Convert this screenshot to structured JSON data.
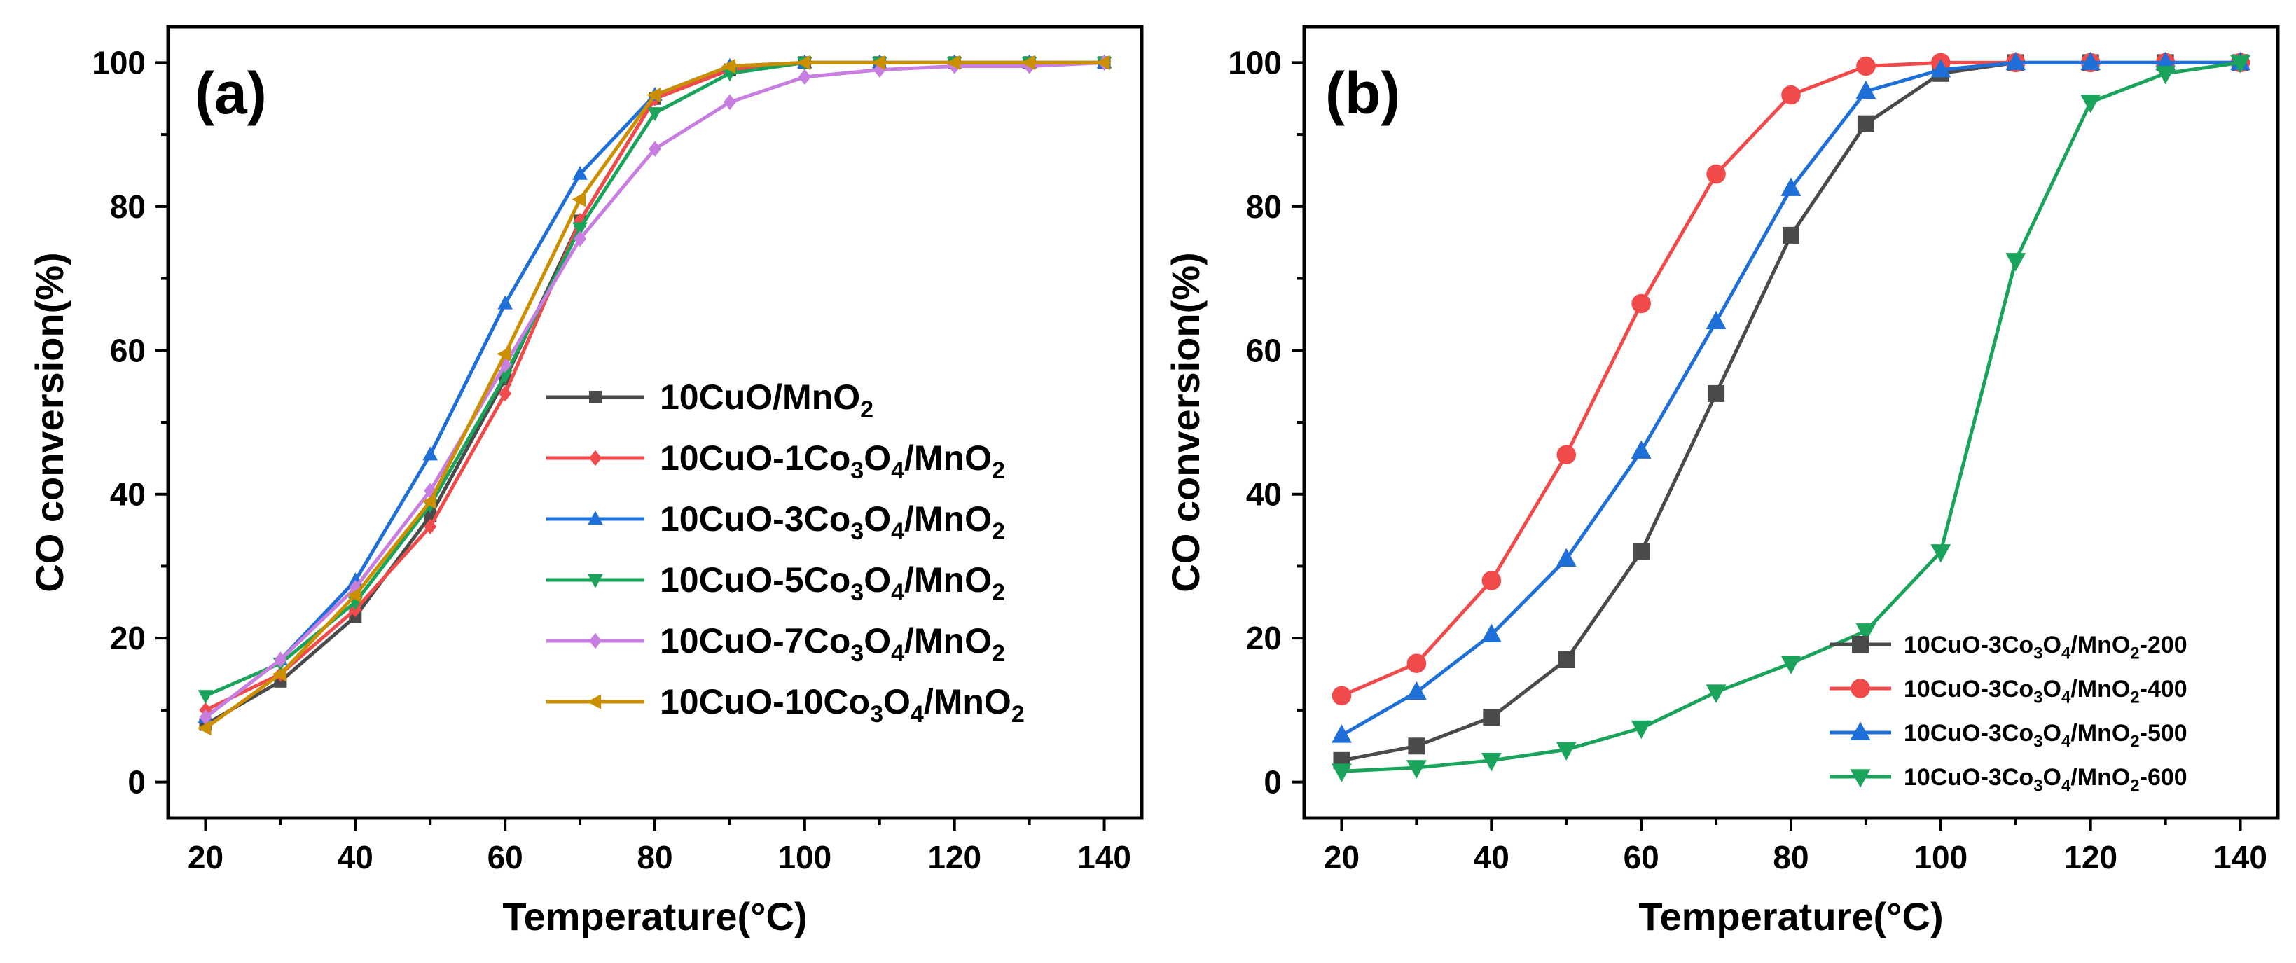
{
  "chart_data": [
    {
      "type": "line",
      "panel_label": "(a)",
      "xlabel": "Temperature(°C)",
      "ylabel": "CO conversion(%)",
      "xlim": [
        15,
        145
      ],
      "ylim": [
        -5,
        105
      ],
      "xticks": [
        20,
        40,
        60,
        80,
        100,
        120,
        140
      ],
      "yticks": [
        0,
        20,
        40,
        60,
        80,
        100
      ],
      "legend_position": "center-right",
      "x": [
        20,
        30,
        40,
        50,
        60,
        70,
        80,
        90,
        100,
        110,
        120,
        130,
        140
      ],
      "series": [
        {
          "name": "10CuO/MnO2",
          "label_parts": [
            [
              "10CuO/MnO",
              false
            ],
            [
              "2",
              true
            ]
          ],
          "color": "#4a4a4a",
          "marker": "square",
          "values": [
            8.0,
            14.0,
            23.0,
            37.0,
            56.0,
            78.0,
            95.0,
            99.0,
            100.0,
            100.0,
            100.0,
            100.0,
            100.0
          ]
        },
        {
          "name": "10CuO-1Co3O4/MnO2",
          "label_parts": [
            [
              "10CuO-1Co",
              false
            ],
            [
              "3",
              true
            ],
            [
              "O",
              false
            ],
            [
              "4",
              true
            ],
            [
              "/MnO",
              false
            ],
            [
              "2",
              true
            ]
          ],
          "color": "#f04a4a",
          "marker": "diamond",
          "values": [
            10.0,
            15.0,
            24.0,
            35.5,
            54.0,
            78.0,
            95.0,
            99.0,
            100.0,
            100.0,
            100.0,
            100.0,
            100.0
          ]
        },
        {
          "name": "10CuO-3Co3O4/MnO2",
          "label_parts": [
            [
              "10CuO-3Co",
              false
            ],
            [
              "3",
              true
            ],
            [
              "O",
              false
            ],
            [
              "4",
              true
            ],
            [
              "/MnO",
              false
            ],
            [
              "2",
              true
            ]
          ],
          "color": "#1f6fd9",
          "marker": "triangle-up",
          "values": [
            9.0,
            17.0,
            28.0,
            45.5,
            66.5,
            84.5,
            95.5,
            99.5,
            100.0,
            100.0,
            100.0,
            100.0,
            100.0
          ]
        },
        {
          "name": "10CuO-5Co3O4/MnO2",
          "label_parts": [
            [
              "10CuO-5Co",
              false
            ],
            [
              "3",
              true
            ],
            [
              "O",
              false
            ],
            [
              "4",
              true
            ],
            [
              "/MnO",
              false
            ],
            [
              "2",
              true
            ]
          ],
          "color": "#1aa35a",
          "marker": "triangle-down",
          "values": [
            12.0,
            16.5,
            25.0,
            38.5,
            56.5,
            77.0,
            93.0,
            98.5,
            100.0,
            100.0,
            100.0,
            100.0,
            100.0
          ]
        },
        {
          "name": "10CuO-7Co3O4/MnO2",
          "label_parts": [
            [
              "10CuO-7Co",
              false
            ],
            [
              "3",
              true
            ],
            [
              "O",
              false
            ],
            [
              "4",
              true
            ],
            [
              "/MnO",
              false
            ],
            [
              "2",
              true
            ]
          ],
          "color": "#c77ee0",
          "marker": "diamond",
          "values": [
            9.0,
            17.0,
            27.0,
            40.5,
            58.0,
            75.5,
            88.0,
            94.5,
            98.0,
            99.0,
            99.5,
            99.5,
            100.0
          ]
        },
        {
          "name": "10CuO-10Co3O4/MnO2",
          "label_parts": [
            [
              "10CuO-10Co",
              false
            ],
            [
              "3",
              true
            ],
            [
              "O",
              false
            ],
            [
              "4",
              true
            ],
            [
              "/MnO",
              false
            ],
            [
              "2",
              true
            ]
          ],
          "color": "#cc8f00",
          "marker": "left-triangle",
          "values": [
            7.5,
            15.0,
            26.0,
            39.0,
            59.5,
            81.0,
            95.5,
            99.5,
            100.0,
            100.0,
            100.0,
            100.0,
            100.0
          ]
        }
      ]
    },
    {
      "type": "line",
      "panel_label": "(b)",
      "xlabel": "Temperature(°C)",
      "ylabel": "CO conversion(%)",
      "xlim": [
        15,
        145
      ],
      "ylim": [
        -5,
        105
      ],
      "xticks": [
        20,
        40,
        60,
        80,
        100,
        120,
        140
      ],
      "yticks": [
        0,
        20,
        40,
        60,
        80,
        100
      ],
      "legend_position": "lower-right",
      "x": [
        20,
        30,
        40,
        50,
        60,
        70,
        80,
        90,
        100,
        110,
        120,
        130,
        140
      ],
      "series": [
        {
          "name": "10CuO-3Co3O4/MnO2-200",
          "label_parts": [
            [
              "10CuO-3Co",
              false
            ],
            [
              "3",
              true
            ],
            [
              "O",
              false
            ],
            [
              "4",
              true
            ],
            [
              "/MnO",
              false
            ],
            [
              "2",
              true
            ],
            [
              "-200",
              false
            ]
          ],
          "color": "#4a4a4a",
          "marker": "square",
          "values": [
            3.0,
            5.0,
            9.0,
            17.0,
            32.0,
            54.0,
            76.0,
            91.5,
            98.5,
            100.0,
            100.0,
            100.0,
            100.0
          ]
        },
        {
          "name": "10CuO-3Co3O4/MnO2-400",
          "label_parts": [
            [
              "10CuO-3Co",
              false
            ],
            [
              "3",
              true
            ],
            [
              "O",
              false
            ],
            [
              "4",
              true
            ],
            [
              "/MnO",
              false
            ],
            [
              "2",
              true
            ],
            [
              "-400",
              false
            ]
          ],
          "color": "#f04a4a",
          "marker": "circle",
          "values": [
            12.0,
            16.5,
            28.0,
            45.5,
            66.5,
            84.5,
            95.5,
            99.5,
            100.0,
            100.0,
            100.0,
            100.0,
            100.0
          ]
        },
        {
          "name": "10CuO-3Co3O4/MnO2-500",
          "label_parts": [
            [
              "10CuO-3Co",
              false
            ],
            [
              "3",
              true
            ],
            [
              "O",
              false
            ],
            [
              "4",
              true
            ],
            [
              "/MnO",
              false
            ],
            [
              "2",
              true
            ],
            [
              "-500",
              false
            ]
          ],
          "color": "#1f6fd9",
          "marker": "triangle-up",
          "values": [
            6.5,
            12.5,
            20.5,
            31.0,
            46.0,
            64.0,
            82.5,
            96.0,
            99.0,
            100.0,
            100.0,
            100.0,
            100.0
          ]
        },
        {
          "name": "10CuO-3Co3O4/MnO2-600",
          "label_parts": [
            [
              "10CuO-3Co",
              false
            ],
            [
              "3",
              true
            ],
            [
              "O",
              false
            ],
            [
              "4",
              true
            ],
            [
              "/MnO",
              false
            ],
            [
              "2",
              true
            ],
            [
              "-600",
              false
            ]
          ],
          "color": "#1aa35a",
          "marker": "triangle-down",
          "values": [
            1.5,
            2.0,
            3.0,
            4.5,
            7.5,
            12.5,
            16.5,
            21.0,
            32.0,
            72.5,
            94.5,
            98.5,
            100.0
          ]
        }
      ]
    }
  ]
}
